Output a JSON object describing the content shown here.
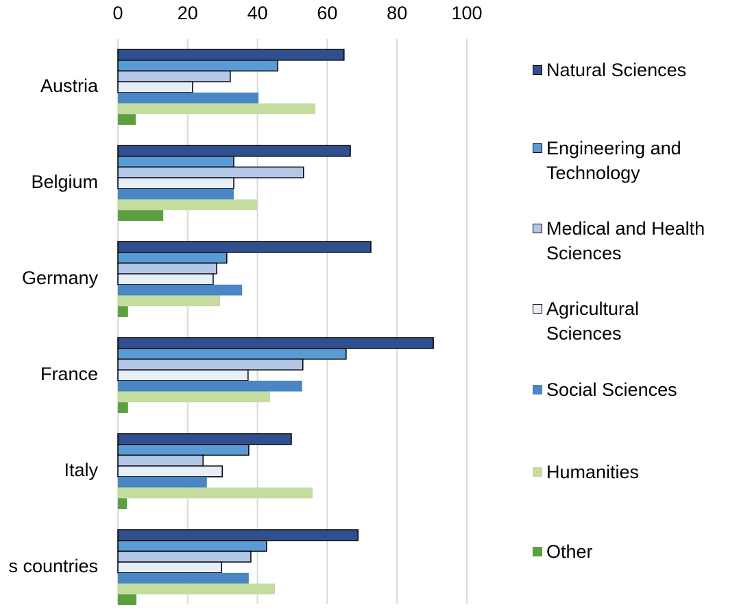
{
  "chart_data": {
    "type": "hbar",
    "categories": [
      "Austria",
      "Belgium",
      "Germany",
      "France",
      "Italy",
      "s countries"
    ],
    "series": [
      {
        "name": "Natural Sciences",
        "color": "#2f4f8f",
        "edgecolor": "#000000",
        "values": [
          64.8,
          66.6,
          72.5,
          90.4,
          49.7,
          68.8
        ]
      },
      {
        "name": "Engineering and Technology",
        "color": "#5b9bd5",
        "edgecolor": "#000000",
        "values": [
          45.8,
          33.2,
          31.2,
          65.4,
          37.5,
          42.6
        ]
      },
      {
        "name": "Medical and Health Sciences",
        "color": "#b4c7e7",
        "edgecolor": "#000000",
        "values": [
          32.2,
          53.2,
          28.3,
          53.0,
          24.4,
          38.1
        ]
      },
      {
        "name": "Agricultural Sciences",
        "color": "#e8eef8",
        "edgecolor": "#000000",
        "values": [
          21.4,
          33.2,
          27.3,
          37.3,
          29.9,
          29.7
        ]
      },
      {
        "name": "Social Sciences",
        "color": "#4a86c4",
        "values": [
          40.3,
          33.2,
          35.6,
          52.8,
          25.5,
          37.5
        ]
      },
      {
        "name": "Humanities",
        "color": "#c5dc9f",
        "values": [
          56.6,
          39.9,
          29.3,
          43.6,
          55.8,
          45.0
        ]
      },
      {
        "name": "Other",
        "color": "#5b9f40",
        "values": [
          5.1,
          13.0,
          2.9,
          2.9,
          2.6,
          5.3
        ]
      }
    ],
    "xlim": [
      0,
      100
    ],
    "xticks": [
      0,
      20,
      40,
      60,
      80,
      100
    ],
    "grid": true,
    "legend": "right"
  }
}
